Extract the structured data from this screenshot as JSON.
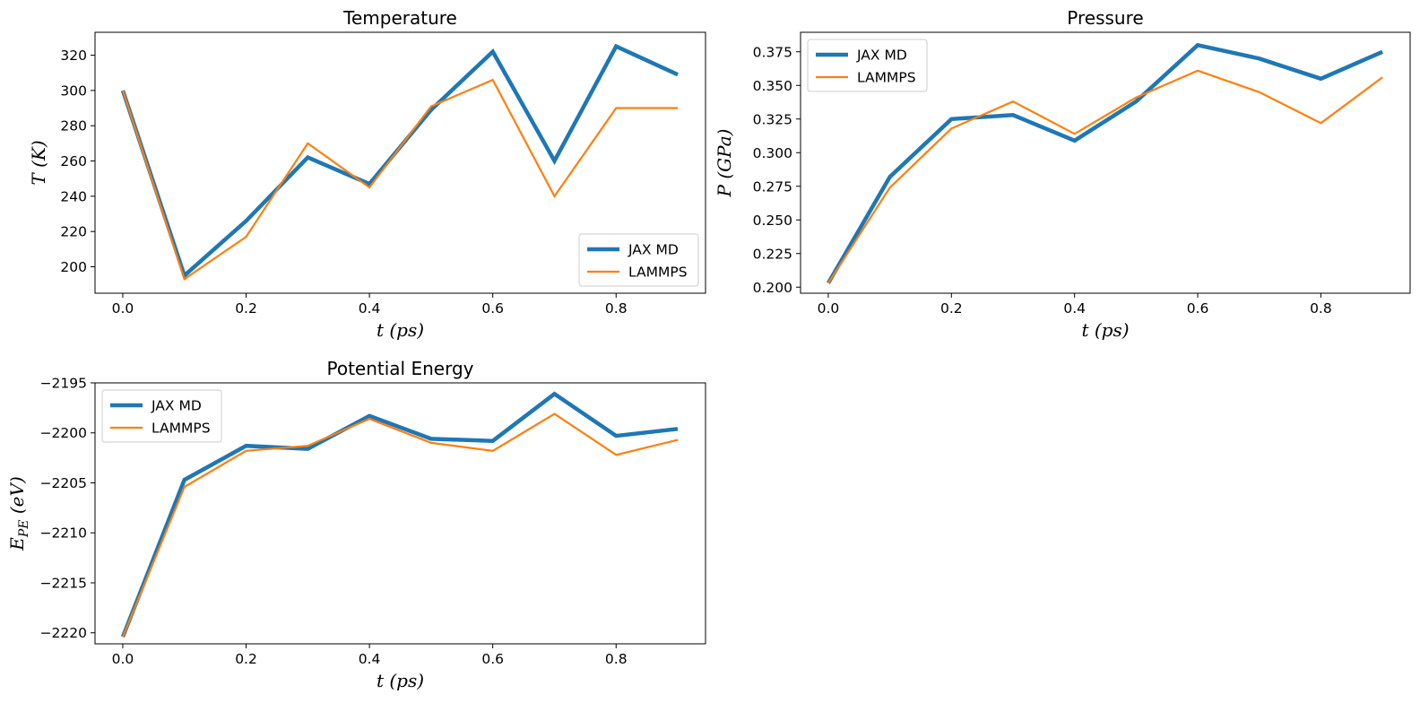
{
  "chart_data": [
    {
      "type": "line",
      "title": "Temperature",
      "xlabel": "t (ps)",
      "ylabel": "T (K)",
      "x": [
        0.0,
        0.1,
        0.2,
        0.3,
        0.4,
        0.5,
        0.6,
        0.7,
        0.8,
        0.9
      ],
      "xlim": [
        -0.045,
        0.945
      ],
      "ylim": [
        185,
        333
      ],
      "xticks": [
        0.0,
        0.2,
        0.4,
        0.6,
        0.8
      ],
      "xtick_labels": [
        "0.0",
        "0.2",
        "0.4",
        "0.6",
        "0.8"
      ],
      "yticks": [
        200,
        220,
        240,
        260,
        280,
        300,
        320
      ],
      "ytick_labels": [
        "200",
        "220",
        "240",
        "260",
        "280",
        "300",
        "320"
      ],
      "legend": "bottom-right",
      "series": [
        {
          "name": "JAX MD",
          "color": "#1f77b4",
          "values": [
            300,
            195,
            226,
            262,
            247,
            289,
            322,
            260,
            325,
            309
          ]
        },
        {
          "name": "LAMMPS",
          "color": "#ff7f0e",
          "values": [
            300,
            193,
            217,
            270,
            245,
            291,
            306,
            240,
            290,
            290
          ]
        }
      ]
    },
    {
      "type": "line",
      "title": "Pressure",
      "xlabel": "t (ps)",
      "ylabel": "P (GPa)",
      "x": [
        0.0,
        0.1,
        0.2,
        0.3,
        0.4,
        0.5,
        0.6,
        0.7,
        0.8,
        0.9
      ],
      "xlim": [
        -0.045,
        0.945
      ],
      "ylim": [
        0.1955,
        0.3895
      ],
      "xticks": [
        0.0,
        0.2,
        0.4,
        0.6,
        0.8
      ],
      "xtick_labels": [
        "0.0",
        "0.2",
        "0.4",
        "0.6",
        "0.8"
      ],
      "yticks": [
        0.2,
        0.225,
        0.25,
        0.275,
        0.3,
        0.325,
        0.35,
        0.375
      ],
      "ytick_labels": [
        "0.200",
        "0.225",
        "0.250",
        "0.275",
        "0.300",
        "0.325",
        "0.350",
        "0.375"
      ],
      "legend": "top-left",
      "series": [
        {
          "name": "JAX MD",
          "color": "#1f77b4",
          "values": [
            0.203,
            0.282,
            0.325,
            0.328,
            0.309,
            0.338,
            0.38,
            0.37,
            0.355,
            0.375
          ]
        },
        {
          "name": "LAMMPS",
          "color": "#ff7f0e",
          "values": [
            0.203,
            0.274,
            0.318,
            0.338,
            0.314,
            0.341,
            0.361,
            0.345,
            0.322,
            0.356
          ]
        }
      ]
    },
    {
      "type": "line",
      "title": "Potential Energy",
      "xlabel": "t (ps)",
      "ylabel": "E_PE (eV)",
      "x": [
        0.0,
        0.1,
        0.2,
        0.3,
        0.4,
        0.5,
        0.6,
        0.7,
        0.8,
        0.9
      ],
      "xlim": [
        -0.045,
        0.945
      ],
      "ylim": [
        -2221.1,
        -2195.0
      ],
      "xticks": [
        0.0,
        0.2,
        0.4,
        0.6,
        0.8
      ],
      "xtick_labels": [
        "0.0",
        "0.2",
        "0.4",
        "0.6",
        "0.8"
      ],
      "yticks": [
        -2220,
        -2215,
        -2210,
        -2205,
        -2200,
        -2195
      ],
      "ytick_labels": [
        "−2220",
        "−2215",
        "−2210",
        "−2205",
        "−2200",
        "−2195"
      ],
      "legend": "top-left",
      "series": [
        {
          "name": "JAX MD",
          "color": "#1f77b4",
          "values": [
            -2220.4,
            -2204.7,
            -2201.3,
            -2201.6,
            -2198.3,
            -2200.6,
            -2200.8,
            -2196.1,
            -2200.3,
            -2199.6
          ]
        },
        {
          "name": "LAMMPS",
          "color": "#ff7f0e",
          "values": [
            -2220.4,
            -2205.4,
            -2201.8,
            -2201.3,
            -2198.6,
            -2201.0,
            -2201.8,
            -2198.1,
            -2202.2,
            -2200.7
          ]
        }
      ]
    }
  ]
}
